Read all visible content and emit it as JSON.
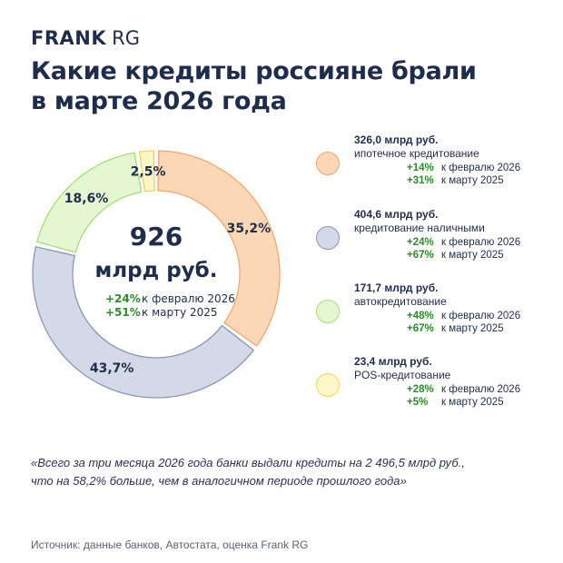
{
  "header": {
    "logo_brand": "FRANK",
    "logo_sub": "RG",
    "title_lines": [
      "Какие кредиты россияне брали",
      "в марте 2026 года"
    ]
  },
  "chart_data": {
    "type": "pie",
    "total": {
      "value": "926",
      "unit": "млрд руб.",
      "changes": [
        {
          "pct": "+24%",
          "label": "к февралю 2026"
        },
        {
          "pct": "+51%",
          "label": "к марту 2025"
        }
      ]
    },
    "slices": [
      {
        "label": "ипотечное кредитование",
        "share": 35.2,
        "share_label": "35,2%",
        "amount": "326,0 млрд руб.",
        "fill": "#fbd7b8",
        "stroke": "#f2a86c",
        "changes": [
          {
            "pct": "+14%",
            "label": "к февралю 2026"
          },
          {
            "pct": "+31%",
            "label": "к марту 2025"
          }
        ]
      },
      {
        "label": "кредитование наличными",
        "share": 43.7,
        "share_label": "43,7%",
        "amount": "404,6 млрд руб.",
        "fill": "#d3d9e6",
        "stroke": "#8a96b3",
        "changes": [
          {
            "pct": "+24%",
            "label": "к февралю 2026"
          },
          {
            "pct": "+67%",
            "label": "к марту 2025"
          }
        ]
      },
      {
        "label": "автокредитование",
        "share": 18.6,
        "share_label": "18,6%",
        "amount": "171,7 млрд руб.",
        "fill": "#e5f6d3",
        "stroke": "#a6de6f",
        "changes": [
          {
            "pct": "+48%",
            "label": "к февралю 2026"
          },
          {
            "pct": "+67%",
            "label": "к марту 2025"
          }
        ]
      },
      {
        "label": "POS-кредитование",
        "share": 2.5,
        "share_label": "2,5%",
        "amount": "23,4 млрд руб.",
        "fill": "#fdf6c8",
        "stroke": "#ecd65a",
        "changes": [
          {
            "pct": "+28%",
            "label": "к февралю 2026"
          },
          {
            "pct": "+5%",
            "label": "к марту 2025"
          }
        ]
      }
    ]
  },
  "quote_lines": [
    "«Всего за три месяца 2026 года банки выдали кредиты на 2 496,5 млрд руб.,",
    "что на 58,2% больше, чем в аналогичном периоде прошлого года»"
  ],
  "source": "Источник: данные банков, Автостата, оценка Frank RG"
}
